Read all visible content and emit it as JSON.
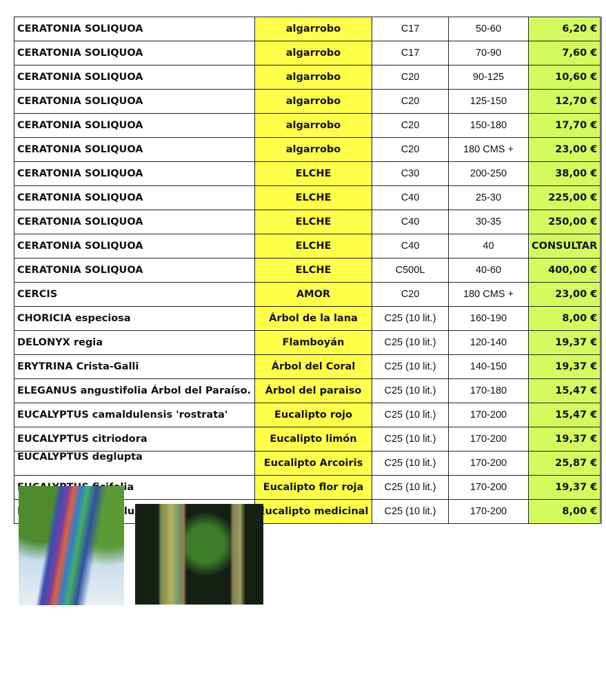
{
  "rows": [
    {
      "name": "CERATONIA SOLIQUOA",
      "common": "algarrobo",
      "pot": "C17",
      "size": "50-60",
      "price": "6,20 €"
    },
    {
      "name": "CERATONIA SOLIQUOA",
      "common": "algarrobo",
      "pot": "C17",
      "size": "70-90",
      "price": "7,60 €"
    },
    {
      "name": "CERATONIA SOLIQUOA",
      "common": "algarrobo",
      "pot": "C20",
      "size": "90-125",
      "price": "10,60 €"
    },
    {
      "name": "CERATONIA SOLIQUOA",
      "common": "algarrobo",
      "pot": "C20",
      "size": "125-150",
      "price": "12,70 €"
    },
    {
      "name": "CERATONIA SOLIQUOA",
      "common": "algarrobo",
      "pot": "C20",
      "size": "150-180",
      "price": "17,70 €"
    },
    {
      "name": "CERATONIA SOLIQUOA",
      "common": "algarrobo",
      "pot": "C20",
      "size": "180 CMS +",
      "price": "23,00 €"
    },
    {
      "name": "CERATONIA SOLIQUOA",
      "common": "ELCHE",
      "pot": "C30",
      "size": "200-250",
      "price": "38,00 €"
    },
    {
      "name": "CERATONIA SOLIQUOA",
      "common": "ELCHE",
      "pot": "C40",
      "size": "25-30",
      "price": "225,00 €"
    },
    {
      "name": "CERATONIA SOLIQUOA",
      "common": "ELCHE",
      "pot": "C40",
      "size": "30-35",
      "price": "250,00 €"
    },
    {
      "name": "CERATONIA SOLIQUOA",
      "common": "ELCHE",
      "pot": "C40",
      "size": "40",
      "price": "CONSULTAR"
    },
    {
      "name": "CERATONIA SOLIQUOA",
      "common": "ELCHE",
      "pot": "C500L",
      "size": "40-60",
      "price": "400,00 €"
    },
    {
      "name": "CERCIS",
      "common": "AMOR",
      "pot": "C20",
      "size": "180 CMS +",
      "price": "23,00 €"
    },
    {
      "name": "CHORICIA especiosa",
      "common": "Árbol de la lana",
      "pot": "C25 (10 lit.)",
      "size": "160-190",
      "price": "8,00 €"
    },
    {
      "name": "DELONYX regia",
      "common": "Flamboyán",
      "pot": "C25 (10 lit.)",
      "size": "120-140",
      "price": "19,37 €"
    },
    {
      "name": "ERYTRINA Crista-Galli",
      "common": "Árbol del Coral",
      "pot": "C25 (10 lit.)",
      "size": "140-150",
      "price": "19,37 €"
    },
    {
      "name": "ELEGANUS angustifolia Árbol del Paraíso.",
      "common": "Árbol del paraiso",
      "pot": "C25 (10 lit.)",
      "size": "170-180",
      "price": "15,47 €"
    },
    {
      "name": "EUCALYPTUS camaldulensis 'rostrata'",
      "common": "Eucalipto rojo",
      "pot": "C25 (10 lit.)",
      "size": "170-200",
      "price": "15,47 €"
    },
    {
      "name": "EUCALYPTUS citriodora",
      "common": "Eucalipto limón",
      "pot": "C25 (10 lit.)",
      "size": "170-200",
      "price": "19,37 €"
    },
    {
      "name": "EUCALYPTUS deglupta",
      "common": "Eucalipto Arcoiris",
      "pot": "C25 (10 lit.)",
      "size": "170-200",
      "price": "25,87 €",
      "photos": true
    },
    {
      "name": "EUCALYPTUS ficifolia",
      "common": "Eucalipto flor roja",
      "pot": "C25 (10 lit.)",
      "size": "170-200",
      "price": "19,37 €"
    },
    {
      "name": "EUCALYPTUS globulus",
      "common": "Eucalipto medicinal",
      "pot": "C25 (10 lit.)",
      "size": "170-200",
      "price": "8,00 €"
    }
  ],
  "colors": {
    "common_bg": "#ffff4a",
    "price_bg": "#d3fb5e"
  }
}
